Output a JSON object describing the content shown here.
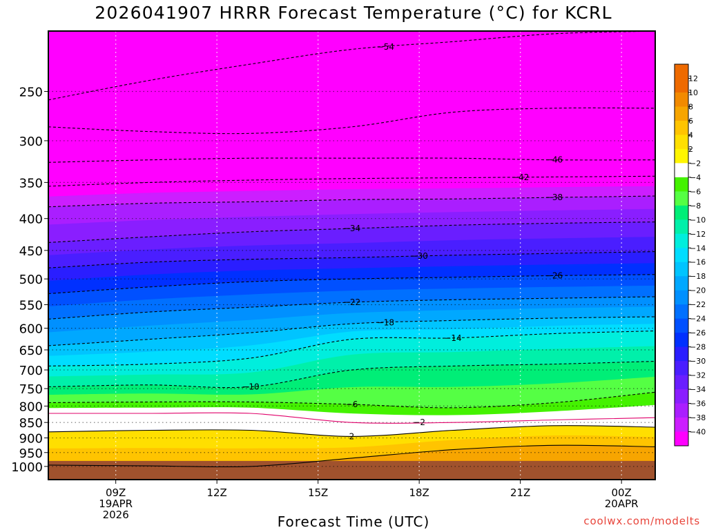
{
  "title": "2026041907 HRRR Forecast Temperature (°C) for KCRL",
  "xaxis_title": "Forecast Time (UTC)",
  "credit": "coolwx.com/modelts",
  "chart_data": {
    "type": "heatmap",
    "title": "2026041907 HRRR Forecast Temperature (°C) for KCRL",
    "xlabel": "Forecast Time (UTC)",
    "ylabel": "",
    "y_scale": "log-pressure",
    "y_inverted": true,
    "y_ticks": [
      250,
      300,
      350,
      400,
      450,
      500,
      550,
      600,
      650,
      700,
      750,
      800,
      850,
      900,
      950,
      1000
    ],
    "ylim": [
      1050,
      200
    ],
    "x_ticks": [
      {
        "hour": 9,
        "lines": [
          "09Z",
          "19APR",
          "2026"
        ]
      },
      {
        "hour": 12,
        "lines": [
          "12Z"
        ]
      },
      {
        "hour": 15,
        "lines": [
          "15Z"
        ]
      },
      {
        "hour": 18,
        "lines": [
          "18Z"
        ]
      },
      {
        "hour": 21,
        "lines": [
          "21Z"
        ]
      },
      {
        "hour": 24,
        "lines": [
          "00Z",
          "20APR"
        ]
      }
    ],
    "xlim": [
      7.0,
      25.0
    ],
    "grid": true,
    "colorbar": {
      "placement": "right",
      "bins": [
        {
          "label": "12",
          "color": "#ee6a00"
        },
        {
          "label": "10",
          "color": "#f28a00"
        },
        {
          "label": "8",
          "color": "#f7a500"
        },
        {
          "label": "6",
          "color": "#ffc400"
        },
        {
          "label": "4",
          "color": "#ffdf00"
        },
        {
          "label": "2",
          "color": "#fff500"
        },
        {
          "label": "-2",
          "color": "#ffffff"
        },
        {
          "label": "-4",
          "color": "#44f200"
        },
        {
          "label": "-6",
          "color": "#55ff44"
        },
        {
          "label": "-8",
          "color": "#00ee77"
        },
        {
          "label": "-10",
          "color": "#00f0aa"
        },
        {
          "label": "-12",
          "color": "#00eedd"
        },
        {
          "label": "-14",
          "color": "#00ddff"
        },
        {
          "label": "-16",
          "color": "#00c4ff"
        },
        {
          "label": "-18",
          "color": "#00a8ff"
        },
        {
          "label": "-20",
          "color": "#0090ff"
        },
        {
          "label": "-22",
          "color": "#0070ff"
        },
        {
          "label": "-24",
          "color": "#0050ff"
        },
        {
          "label": "-26",
          "color": "#0030ff"
        },
        {
          "label": "-28",
          "color": "#2a1eff"
        },
        {
          "label": "-30",
          "color": "#4a1eff"
        },
        {
          "label": "-32",
          "color": "#6a1eff"
        },
        {
          "label": "-34",
          "color": "#8a1eff"
        },
        {
          "label": "-36",
          "color": "#aa1eff"
        },
        {
          "label": "-38",
          "color": "#cc1eff"
        },
        {
          "label": "-40",
          "color": "#ff00ff"
        }
      ],
      "top_color": "#ee6a00"
    },
    "contours": [
      {
        "value": -54,
        "p": [
          258,
          240,
          226,
          214,
          208,
          202,
          200
        ],
        "label": "-54",
        "label_hour": 17
      },
      {
        "value": -50,
        "p": [
          285,
          290,
          292,
          285,
          270,
          266,
          266
        ],
        "label": "",
        "label_hour": null
      },
      {
        "value": -46,
        "p": [
          325,
          322,
          320,
          320,
          320,
          322,
          322
        ],
        "label": "-46",
        "label_hour": 22
      },
      {
        "value": -42,
        "p": [
          355,
          350,
          347,
          345,
          344,
          343,
          342
        ],
        "label": "-42",
        "label_hour": 21
      },
      {
        "value": -38,
        "p": [
          383,
          378,
          376,
          373,
          372,
          370,
          368
        ],
        "label": "-38",
        "label_hour": 22
      },
      {
        "value": -34,
        "p": [
          437,
          428,
          420,
          415,
          410,
          407,
          405
        ],
        "label": "-34",
        "label_hour": 16
      },
      {
        "value": -30,
        "p": [
          480,
          470,
          465,
          462,
          458,
          455,
          452
        ],
        "label": "-30",
        "label_hour": 18
      },
      {
        "value": -26,
        "p": [
          528,
          515,
          505,
          500,
          497,
          494,
          492
        ],
        "label": "-26",
        "label_hour": 22
      },
      {
        "value": -22,
        "p": [
          580,
          565,
          555,
          545,
          540,
          537,
          534
        ],
        "label": "-22",
        "label_hour": 16
      },
      {
        "value": -18,
        "p": [
          640,
          625,
          610,
          590,
          583,
          578,
          575
        ],
        "label": "-18",
        "label_hour": 17
      },
      {
        "value": -14,
        "p": [
          690,
          685,
          670,
          625,
          622,
          612,
          606
        ],
        "label": "-14",
        "label_hour": 19
      },
      {
        "value": -10,
        "p": [
          745,
          740,
          745,
          700,
          690,
          685,
          678
        ],
        "label": "-10",
        "label_hour": 13
      },
      {
        "value": -6,
        "p": [
          790,
          788,
          788,
          795,
          805,
          790,
          760
        ],
        "label": "-6",
        "label_hour": 16
      },
      {
        "value": -2,
        "p": [
          822,
          822,
          822,
          850,
          850,
          842,
          835
        ],
        "label": "-2",
        "label_hour": 18
      },
      {
        "value": 2,
        "p": [
          880,
          875,
          875,
          895,
          875,
          860,
          865
        ],
        "label": "2",
        "label_hour": 16
      },
      {
        "value": 6,
        "p": [
          995,
          998,
          1000,
          970,
          940,
          925,
          930
        ],
        "label": "",
        "label_hour": null
      }
    ],
    "ground_pressure": 1000
  }
}
